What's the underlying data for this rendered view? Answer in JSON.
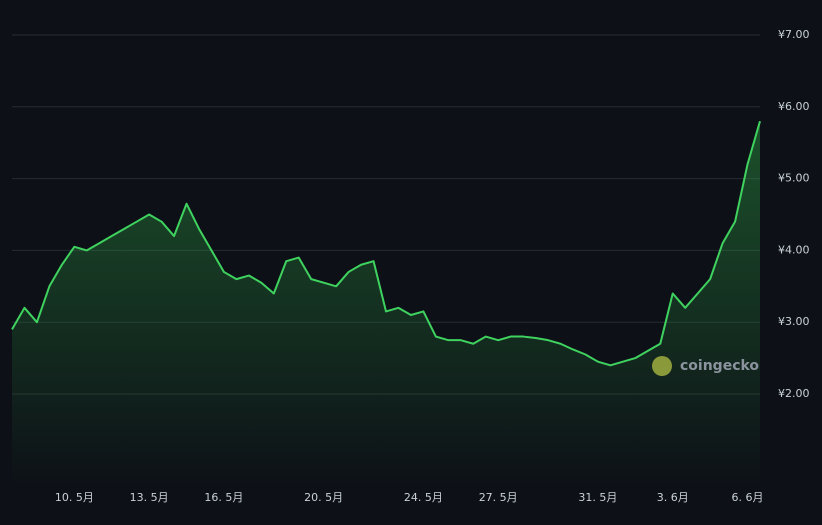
{
  "chart_data": {
    "type": "line",
    "watermark": "coingecko",
    "categories": [
      null,
      null,
      null,
      null,
      null,
      "10. 5月",
      null,
      null,
      null,
      null,
      null,
      "13. 5月",
      null,
      null,
      null,
      null,
      null,
      "16. 5月",
      null,
      null,
      null,
      null,
      null,
      null,
      null,
      "20. 5月",
      null,
      null,
      null,
      null,
      null,
      null,
      null,
      "24. 5月",
      null,
      null,
      null,
      null,
      null,
      "27. 5月",
      null,
      null,
      null,
      null,
      null,
      null,
      null,
      "31. 5月",
      null,
      null,
      null,
      null,
      null,
      "3. 6月",
      null,
      null,
      null,
      null,
      null,
      "6. 6月",
      null
    ],
    "series": [
      {
        "color": "#3fd25f",
        "values": [
          2.9,
          3.2,
          3.0,
          3.5,
          3.8,
          4.05,
          4.0,
          4.1,
          4.2,
          4.3,
          4.4,
          4.5,
          4.4,
          4.2,
          4.65,
          4.3,
          4.0,
          3.7,
          3.6,
          3.65,
          3.55,
          3.4,
          3.85,
          3.9,
          3.6,
          3.55,
          3.5,
          3.7,
          3.8,
          3.85,
          3.15,
          3.2,
          3.1,
          3.15,
          2.8,
          2.75,
          2.75,
          2.7,
          2.8,
          2.75,
          2.8,
          2.8,
          2.78,
          2.75,
          2.7,
          2.62,
          2.55,
          2.45,
          2.4,
          2.45,
          2.5,
          2.6,
          2.7,
          3.4,
          3.2,
          3.4,
          3.6,
          4.1,
          4.4,
          5.2,
          5.8
        ]
      }
    ],
    "ylim": [
      2,
      7
    ],
    "yticks": [
      {
        "value": 2,
        "label": "¥2.00"
      },
      {
        "value": 3,
        "label": "¥3.00"
      },
      {
        "value": 4,
        "label": "¥4.00"
      },
      {
        "value": 5,
        "label": "¥5.00"
      },
      {
        "value": 6,
        "label": "¥6.00"
      },
      {
        "value": 7,
        "label": "¥7.00"
      }
    ],
    "grid": true
  }
}
